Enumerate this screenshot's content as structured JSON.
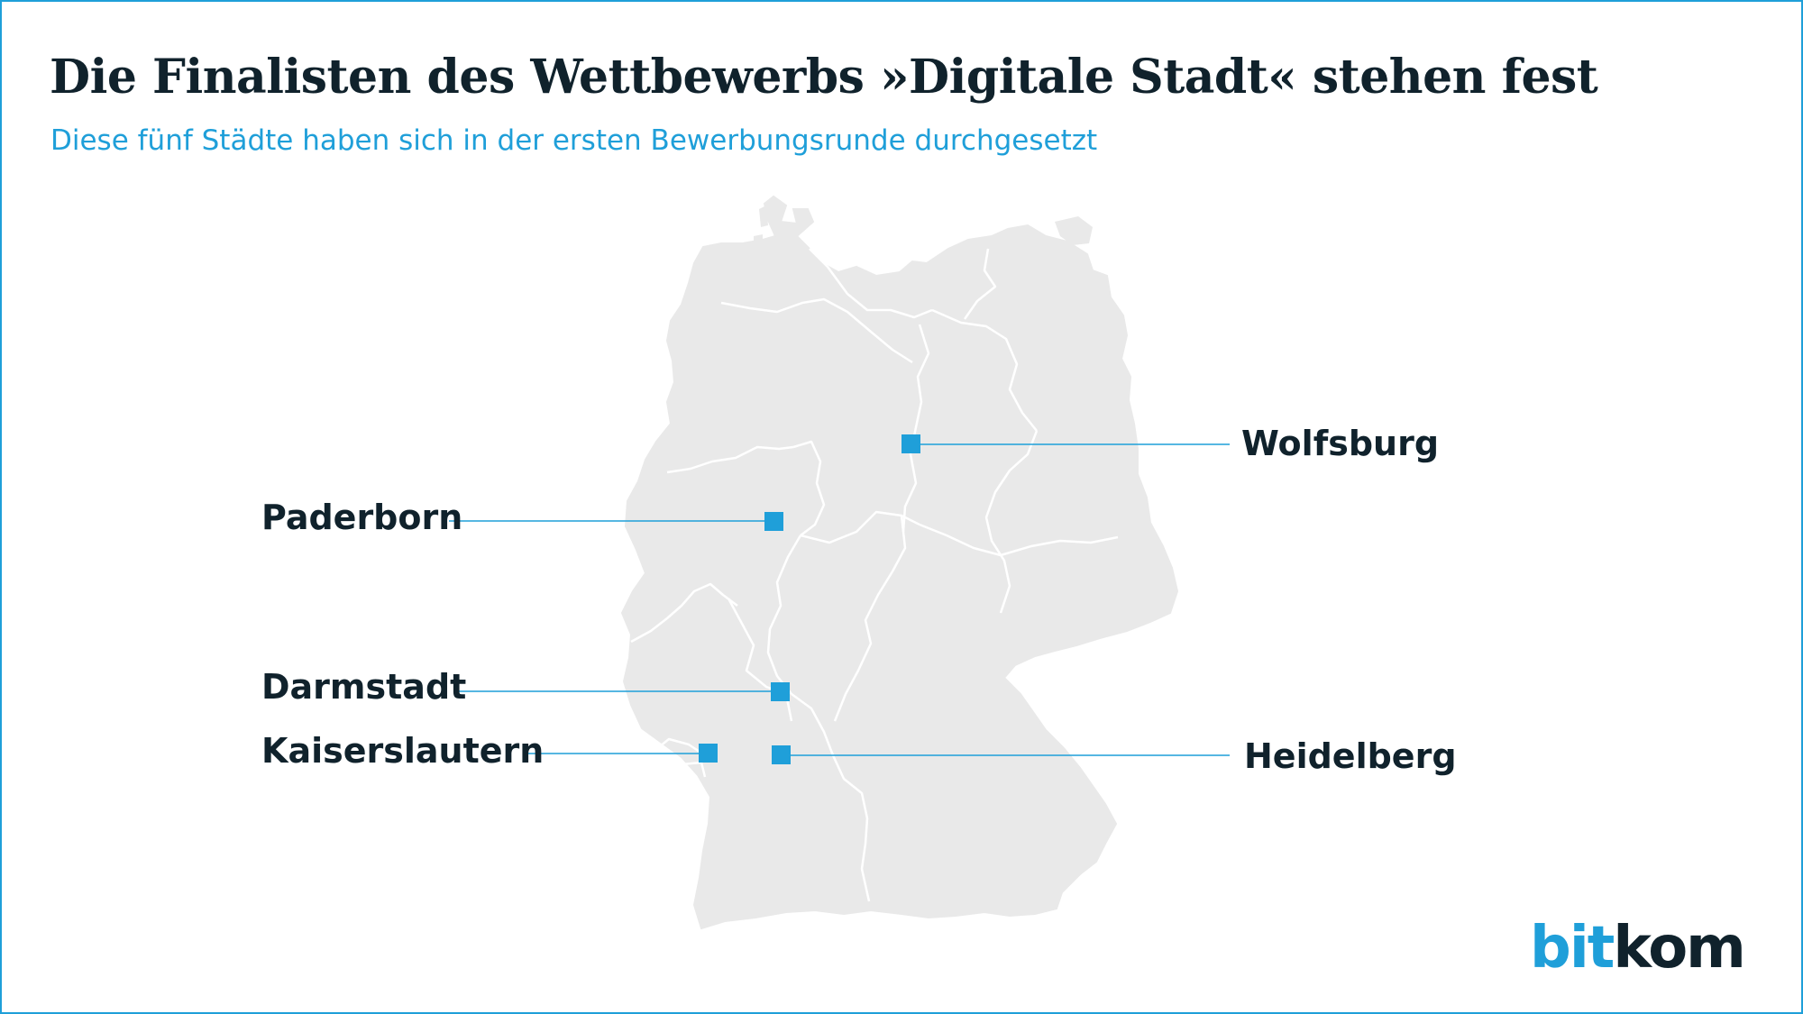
{
  "header": {
    "title": "Die Finalisten des Wettbewerbs »Digitale Stadt« stehen fest",
    "subtitle": "Diese fünf Städte haben sich in der ersten Bewerbungsrunde durchgesetzt"
  },
  "map": {
    "region": "Germany",
    "land_color": "#e9e9e9",
    "border_color": "#ffffff",
    "marker_color": "#1f9fd9",
    "cities": [
      {
        "name": "Wolfsburg"
      },
      {
        "name": "Paderborn"
      },
      {
        "name": "Darmstadt"
      },
      {
        "name": "Kaiserslautern"
      },
      {
        "name": "Heidelberg"
      }
    ]
  },
  "brand": {
    "logo_part_1": "bit",
    "logo_part_2": "kom",
    "accent": "#1f9fd9",
    "text_color": "#10222c"
  }
}
